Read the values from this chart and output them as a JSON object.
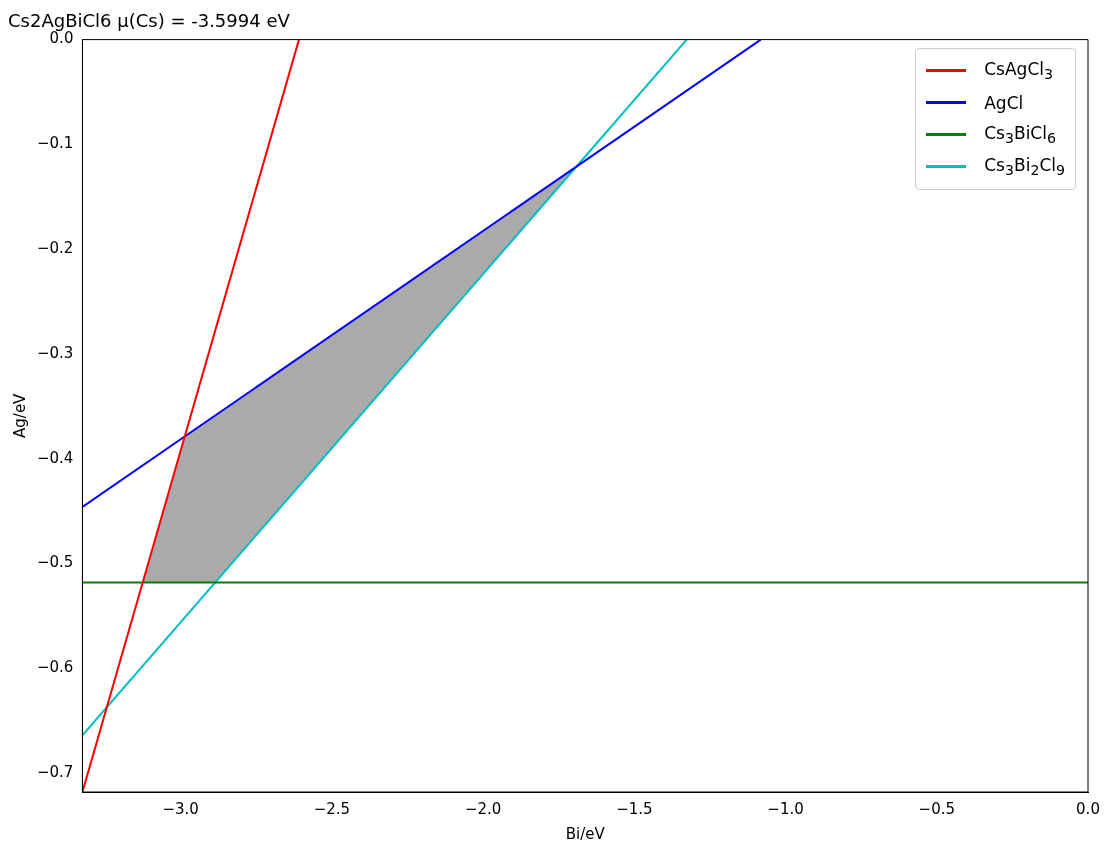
{
  "chart_data": {
    "type": "line",
    "title": "Cs2AgBiCl6 μ(Cs) = -3.5994 eV",
    "xlabel": "Bi/eV",
    "ylabel": "Ag/eV",
    "xlim": [
      -3.325,
      0
    ],
    "ylim": [
      -0.718,
      0
    ],
    "xticks": [
      {
        "value": -3,
        "label": "−3.0"
      },
      {
        "value": -2.5,
        "label": "−2.5"
      },
      {
        "value": -2,
        "label": "−2.0"
      },
      {
        "value": -1.5,
        "label": "−1.5"
      },
      {
        "value": -1,
        "label": "−1.0"
      },
      {
        "value": -0.5,
        "label": "−0.5"
      },
      {
        "value": 0,
        "label": "0.0"
      }
    ],
    "yticks": [
      {
        "value": -0.7,
        "label": "−0.7"
      },
      {
        "value": -0.6,
        "label": "−0.6"
      },
      {
        "value": -0.5,
        "label": "−0.5"
      },
      {
        "value": -0.4,
        "label": "−0.4"
      },
      {
        "value": -0.3,
        "label": "−0.3"
      },
      {
        "value": -0.2,
        "label": "−0.2"
      },
      {
        "value": -0.1,
        "label": "−0.1"
      },
      {
        "value": 0,
        "label": "0.0"
      }
    ],
    "grid": false,
    "legend": "top right",
    "marker": "none",
    "line_style": "solid",
    "series": [
      {
        "type": "area",
        "color": "#aaaaaa",
        "x": [
          -3.126,
          -2.987,
          -1.692,
          -2.886
        ],
        "values": [
          -0.518,
          -0.379,
          -0.121,
          -0.518
        ]
      },
      {
        "name": "CsAgCl$_{3}$",
        "color": "#ff0000",
        "x": [
          -3.325,
          -2.609
        ],
        "values": [
          -0.718,
          0
        ]
      },
      {
        "name": "AgCl",
        "color": "#0000ff",
        "x": [
          -3.325,
          -1.082
        ],
        "values": [
          -0.446,
          0
        ]
      },
      {
        "name": "Cs$_{3}$BiCl$_{6}$",
        "color": "#008000",
        "x": [
          -3.325,
          0
        ],
        "values": [
          -0.518,
          -0.518
        ]
      },
      {
        "name": "Cs$_{3}$Bi$_{2}$Cl$_{9}$",
        "color": "#00bfbf",
        "x": [
          -3.325,
          -1.327
        ],
        "values": [
          -0.664,
          0
        ]
      }
    ]
  }
}
